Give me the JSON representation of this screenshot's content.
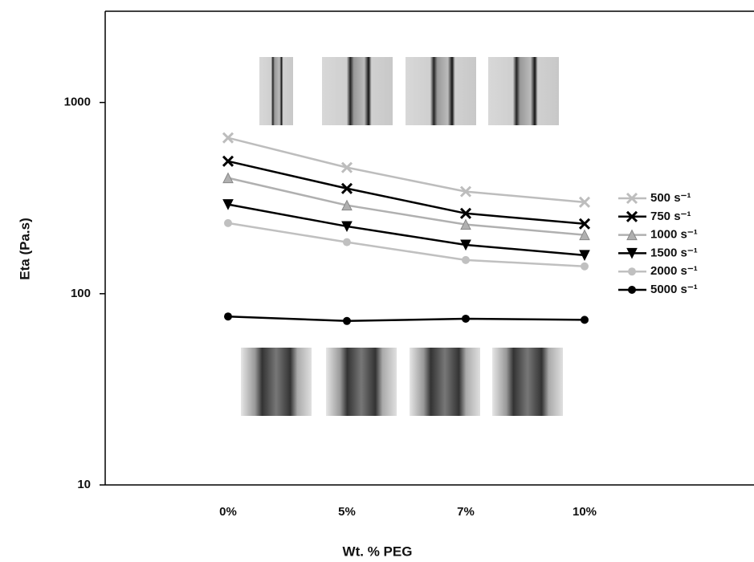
{
  "chart_data": {
    "type": "line",
    "x_label": "Wt. % PEG",
    "y_label": "Eta (Pa.s)",
    "categories": [
      "0%",
      "5%",
      "7%",
      "10%"
    ],
    "series": [
      {
        "name": "500 s⁻¹",
        "color": "#bdbdbd",
        "marker": "x",
        "values": [
          653,
          457,
          342,
          301
        ]
      },
      {
        "name": "750 s⁻¹",
        "color": "#000000",
        "marker": "x",
        "values": [
          493,
          355,
          263,
          232
        ]
      },
      {
        "name": "1000 s⁻¹",
        "color": "#b0b0b0",
        "marker": "triangle",
        "values": [
          403,
          290,
          230,
          203
        ]
      },
      {
        "name": "1500 s⁻¹",
        "color": "#000000",
        "marker": "triangle-down",
        "values": [
          293,
          225,
          180,
          159
        ]
      },
      {
        "name": "2000 s⁻¹",
        "color": "#c0c0c0",
        "marker": "circle",
        "values": [
          234,
          186,
          150,
          139
        ]
      },
      {
        "name": "5000 s⁻¹",
        "color": "#000000",
        "marker": "circle",
        "values": [
          76,
          72,
          74,
          73
        ]
      }
    ],
    "ylim": [
      10,
      3000
    ],
    "yticks": [
      10,
      100,
      1000
    ],
    "log_y": true,
    "grid": false,
    "legend": "right"
  }
}
